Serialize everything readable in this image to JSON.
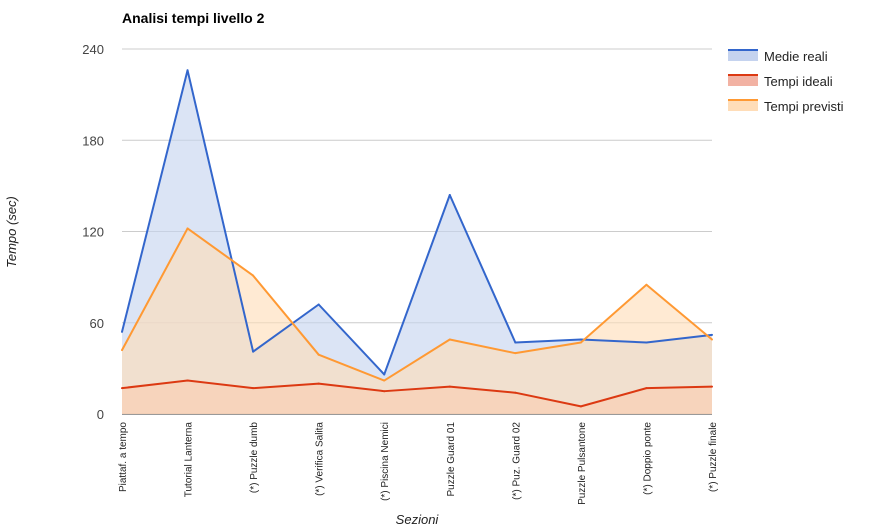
{
  "chart_data": {
    "type": "area",
    "title": "Analisi tempi livello 2",
    "xlabel": "Sezioni",
    "ylabel": "Tempo (sec)",
    "ylim": [
      0,
      240
    ],
    "yticks": [
      0,
      60,
      120,
      180,
      240
    ],
    "grid": true,
    "legend_position": "right",
    "categories": [
      "Piattaf. a tempo",
      "Tutorial Lanterna",
      "(*) Puzzle dumb",
      "(*) Verifica Salita",
      "(*) Piscina Nemici",
      "Puzzle Guard 01",
      "(*) Puz. Guard 02",
      "Puzzle Pulsantone",
      "(*) Doppio ponte",
      "(*) Puzzle finale"
    ],
    "series": [
      {
        "name": "Medie reali",
        "color": "#3366cc",
        "fill": "#c5d3ef",
        "values": [
          54,
          226,
          41,
          72,
          26,
          144,
          47,
          49,
          47,
          52
        ]
      },
      {
        "name": "Tempi ideali",
        "color": "#dc3912",
        "fill": "#f2b2a3",
        "values": [
          17,
          22,
          17,
          20,
          15,
          18,
          14,
          5,
          17,
          18
        ]
      },
      {
        "name": "Tempi previsti",
        "color": "#ff9933",
        "fill": "#ffddb8",
        "values": [
          42,
          122,
          91,
          39,
          22,
          49,
          40,
          47,
          85,
          49
        ]
      }
    ]
  }
}
